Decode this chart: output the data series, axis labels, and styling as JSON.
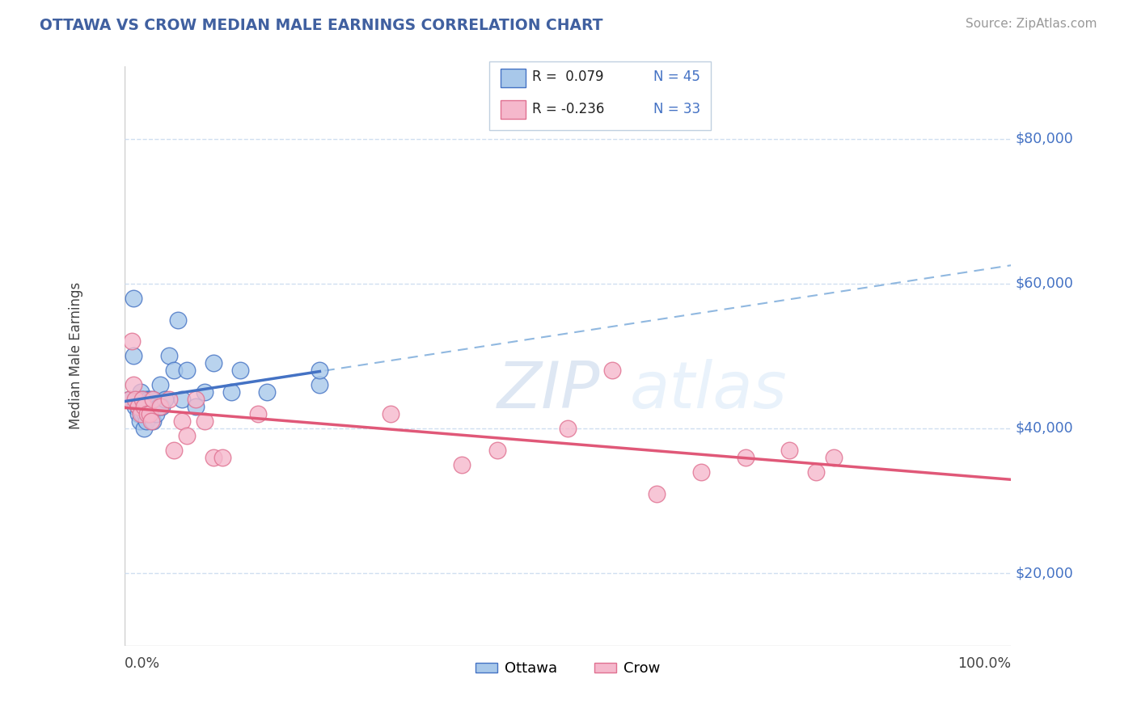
{
  "title": "OTTAWA VS CROW MEDIAN MALE EARNINGS CORRELATION CHART",
  "source": "Source: ZipAtlas.com",
  "ylabel": "Median Male Earnings",
  "xlim": [
    0.0,
    1.0
  ],
  "ylim": [
    10000,
    90000
  ],
  "plot_ylim": [
    10000,
    90000
  ],
  "xtick_labels": [
    "0.0%",
    "100.0%"
  ],
  "ytick_labels": [
    "$20,000",
    "$40,000",
    "$60,000",
    "$80,000"
  ],
  "ytick_values": [
    20000,
    40000,
    60000,
    80000
  ],
  "legend_r": [
    "R =  0.079",
    "R = -0.236"
  ],
  "legend_n": [
    "N = 45",
    "N = 33"
  ],
  "watermark_zip": "ZIP",
  "watermark_atlas": "atlas",
  "ottawa_color": "#a8c8ea",
  "crow_color": "#f5b8cc",
  "ottawa_edge_color": "#4472c4",
  "crow_edge_color": "#e07090",
  "ottawa_line_color": "#4472c4",
  "crow_line_color": "#e05878",
  "dashed_color": "#90b8e0",
  "background_color": "#ffffff",
  "grid_color": "#d0dff0",
  "title_color": "#4060a0",
  "axis_label_color": "#444444",
  "right_label_color": "#4472c4",
  "ottawa_x": [
    0.005,
    0.01,
    0.01,
    0.012,
    0.013,
    0.015,
    0.015,
    0.017,
    0.018,
    0.018,
    0.02,
    0.02,
    0.02,
    0.022,
    0.022,
    0.023,
    0.024,
    0.024,
    0.025,
    0.026,
    0.027,
    0.028,
    0.028,
    0.03,
    0.03,
    0.032,
    0.033,
    0.035,
    0.038,
    0.04,
    0.042,
    0.045,
    0.05,
    0.055,
    0.06,
    0.065,
    0.07,
    0.08,
    0.09,
    0.1,
    0.12,
    0.13,
    0.16,
    0.22,
    0.22
  ],
  "ottawa_y": [
    44000,
    50000,
    58000,
    43000,
    44000,
    42000,
    43000,
    41000,
    43000,
    45000,
    44000,
    43000,
    42000,
    40000,
    43000,
    42000,
    41000,
    44000,
    43000,
    42000,
    44000,
    43000,
    42000,
    43000,
    44000,
    41000,
    43000,
    42000,
    43000,
    46000,
    43000,
    44000,
    50000,
    48000,
    55000,
    44000,
    48000,
    43000,
    45000,
    49000,
    45000,
    48000,
    45000,
    46000,
    48000
  ],
  "crow_x": [
    0.005,
    0.008,
    0.01,
    0.012,
    0.015,
    0.018,
    0.02,
    0.022,
    0.025,
    0.028,
    0.03,
    0.032,
    0.04,
    0.05,
    0.055,
    0.065,
    0.07,
    0.08,
    0.09,
    0.1,
    0.11,
    0.15,
    0.3,
    0.38,
    0.42,
    0.5,
    0.55,
    0.6,
    0.65,
    0.7,
    0.75,
    0.78,
    0.8
  ],
  "crow_y": [
    44000,
    52000,
    46000,
    44000,
    43000,
    42000,
    44000,
    43000,
    42000,
    42000,
    41000,
    44000,
    43000,
    44000,
    37000,
    41000,
    39000,
    44000,
    41000,
    36000,
    36000,
    42000,
    42000,
    35000,
    37000,
    40000,
    48000,
    31000,
    34000,
    36000,
    37000,
    34000,
    36000
  ]
}
